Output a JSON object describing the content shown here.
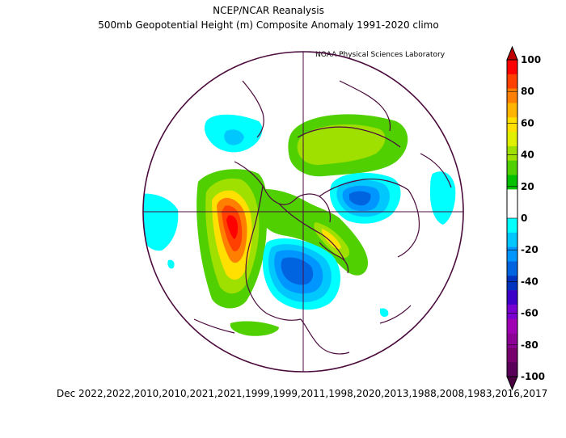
{
  "header": {
    "title": "NCEP/NCAR Reanalysis",
    "subtitle": "500mb Geopotential Height (m) Composite Anomaly 1991-2020 climo",
    "credit": "NOAA Physical Sciences Laboratory"
  },
  "footer": {
    "dates": "Dec 2022,2022,2010,2010,2021,2021,1999,1999,2011,1998,2020,2013,1988,2008,1983,2016,2017"
  },
  "colorbar": {
    "labels": [
      "100",
      "80",
      "60",
      "40",
      "20",
      "0",
      "-20",
      "-40",
      "-60",
      "-80",
      "-100"
    ],
    "colors": [
      "#ff0000",
      "#ff4000",
      "#ff8000",
      "#ffb400",
      "#ffe000",
      "#e0f000",
      "#a0e000",
      "#50d000",
      "#00c000",
      "#ffffff",
      "#ffffff",
      "#00ffff",
      "#00c8ff",
      "#0096ff",
      "#0064e0",
      "#0032c0",
      "#3c00c8",
      "#7800d0",
      "#a000b4",
      "#8c0096",
      "#78006e",
      "#5a005a"
    ]
  },
  "map": {
    "projection": "polar-stereographic-north",
    "features": [
      {
        "name": "ridge-north-pacific",
        "type": "positive-anomaly"
      },
      {
        "name": "trough-north-america",
        "type": "negative-anomaly"
      },
      {
        "name": "trough-siberia",
        "type": "negative-anomaly"
      },
      {
        "name": "ridge-eurasia",
        "type": "positive-anomaly"
      }
    ]
  }
}
